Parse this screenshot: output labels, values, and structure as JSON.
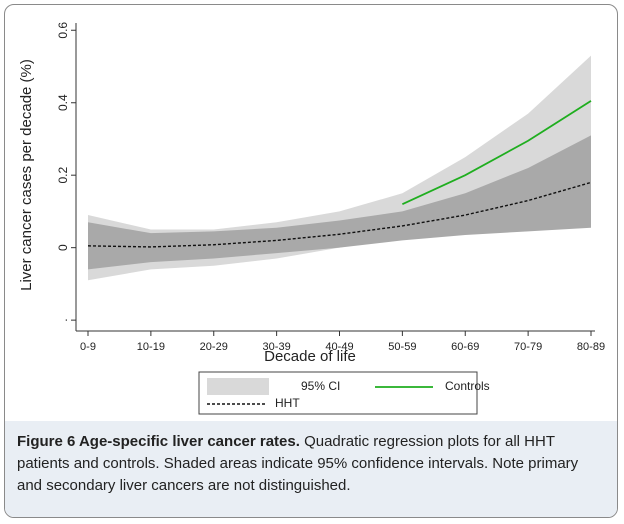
{
  "chart_data": {
    "type": "line",
    "ylabel": "Liver cancer cases per decade (%)",
    "xlabel": "Decade of life",
    "categories": [
      "0-9",
      "10-19",
      "20-29",
      "30-39",
      "40-49",
      "50-59",
      "60-69",
      "70-79",
      "80-89"
    ],
    "ylim": [
      -0.23,
      0.62
    ],
    "yticks": [
      {
        "value": -0.2,
        "label": "."
      },
      0,
      0.2,
      0.4,
      0.6
    ],
    "ci_bands": {
      "name": "95% CI",
      "legend_color": "#d9d9d9",
      "bands": [
        {
          "color": "#d9d9d9",
          "upper": [
            0.09,
            0.05,
            0.05,
            0.07,
            0.1,
            0.15,
            0.25,
            0.37,
            0.53
          ],
          "lower": [
            -0.09,
            -0.06,
            -0.05,
            -0.03,
            0.0,
            0.03,
            0.05,
            0.06,
            0.06
          ]
        },
        {
          "color": "#a9a9a9",
          "upper": [
            0.07,
            0.04,
            0.045,
            0.055,
            0.075,
            0.1,
            0.15,
            0.22,
            0.31
          ],
          "lower": [
            -0.06,
            -0.04,
            -0.03,
            -0.015,
            0.0,
            0.02,
            0.035,
            0.045,
            0.055
          ]
        }
      ]
    },
    "series": [
      {
        "name": "Controls",
        "color": "#1fae1f",
        "dash": false,
        "values": [
          null,
          null,
          null,
          null,
          null,
          0.12,
          0.2,
          0.295,
          0.405
        ]
      },
      {
        "name": "HHT",
        "color": "#111111",
        "dash": true,
        "values": [
          0.005,
          0.002,
          0.008,
          0.02,
          0.037,
          0.06,
          0.09,
          0.13,
          0.18
        ]
      }
    ]
  },
  "caption": {
    "title": "Figure 6 Age-specific liver cancer rates.",
    "text": "Quadratic regression plots for all HHT patients and controls. Shaded areas indicate 95% confidence intervals. Note primary and secondary liver cancers are not distinguished."
  }
}
